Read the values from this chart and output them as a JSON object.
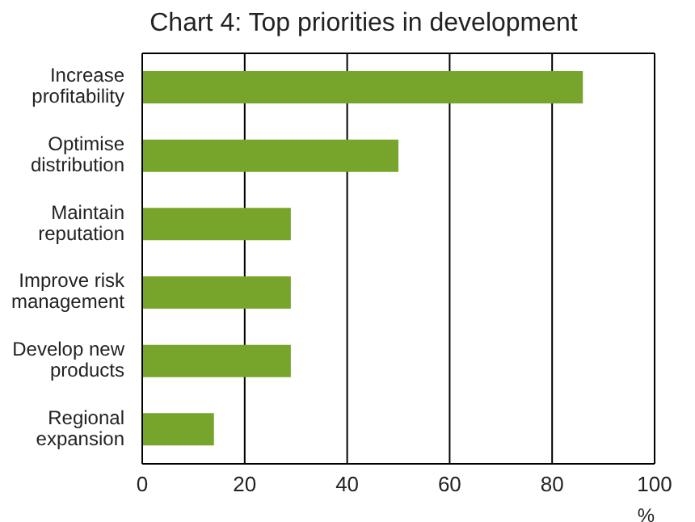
{
  "chart_data": {
    "type": "bar",
    "orientation": "horizontal",
    "title": "Chart 4: Top priorities in development",
    "xlabel": "%",
    "categories": [
      "Increase profitability",
      "Optimise distribution",
      "Maintain reputation",
      "Improve risk management",
      "Develop new products",
      "Regional expansion"
    ],
    "values": [
      86,
      50,
      29,
      29,
      29,
      14
    ],
    "color": "#77a52b",
    "xlim": [
      0,
      100
    ],
    "xticks": [
      0,
      20,
      40,
      60,
      80,
      100
    ],
    "grid": "x",
    "legend": false
  }
}
